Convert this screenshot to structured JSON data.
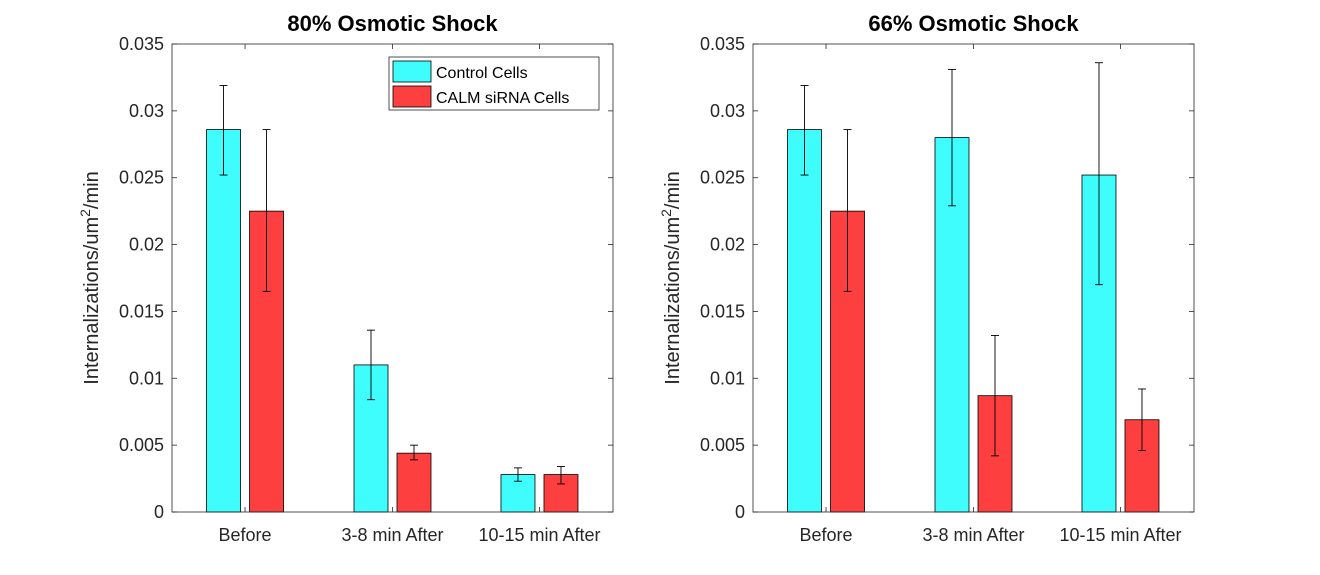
{
  "colors": {
    "control": "#3ffdfd",
    "calm": "#fd3f3f",
    "axis": "#262626",
    "background": "#ffffff"
  },
  "legend": {
    "entries": [
      "Control Cells",
      "CALM siRNA Cells"
    ],
    "placement": "top-right of first chart"
  },
  "chart_data": [
    {
      "type": "bar",
      "title": "80% Osmotic Shock",
      "xlabel": "",
      "ylabel": "Internalizations/um",
      "ylabel_superscript": "2",
      "ylabel_suffix": "/min",
      "categories": [
        "Before",
        "3-8 min After",
        "10-15 min After"
      ],
      "ylim": [
        0,
        0.035
      ],
      "yticks": [
        "0",
        "0.005",
        "0.01",
        "0.015",
        "0.02",
        "0.025",
        "0.03",
        "0.035"
      ],
      "grid": false,
      "series": [
        {
          "name": "Control Cells",
          "values": [
            0.0286,
            0.011,
            0.0028
          ],
          "err_low": [
            0.0252,
            0.0084,
            0.0023
          ],
          "err_high": [
            0.0319,
            0.0136,
            0.0033
          ]
        },
        {
          "name": "CALM siRNA Cells",
          "values": [
            0.0225,
            0.0044,
            0.0028
          ],
          "err_low": [
            0.0165,
            0.0039,
            0.0021
          ],
          "err_high": [
            0.0286,
            0.005,
            0.0034
          ]
        }
      ]
    },
    {
      "type": "bar",
      "title": "66% Osmotic Shock",
      "xlabel": "",
      "ylabel": "Internalizations/um",
      "ylabel_superscript": "2",
      "ylabel_suffix": "/min",
      "categories": [
        "Before",
        "3-8 min After",
        "10-15 min After"
      ],
      "ylim": [
        0,
        0.035
      ],
      "yticks": [
        "0",
        "0.005",
        "0.01",
        "0.015",
        "0.02",
        "0.025",
        "0.03",
        "0.035"
      ],
      "grid": false,
      "series": [
        {
          "name": "Control Cells",
          "values": [
            0.0286,
            0.028,
            0.0252
          ],
          "err_low": [
            0.0252,
            0.0229,
            0.017
          ],
          "err_high": [
            0.0319,
            0.0331,
            0.0336
          ]
        },
        {
          "name": "CALM siRNA Cells",
          "values": [
            0.0225,
            0.0087,
            0.0069
          ],
          "err_low": [
            0.0165,
            0.0042,
            0.0046
          ],
          "err_high": [
            0.0286,
            0.0132,
            0.0092
          ]
        }
      ]
    }
  ]
}
